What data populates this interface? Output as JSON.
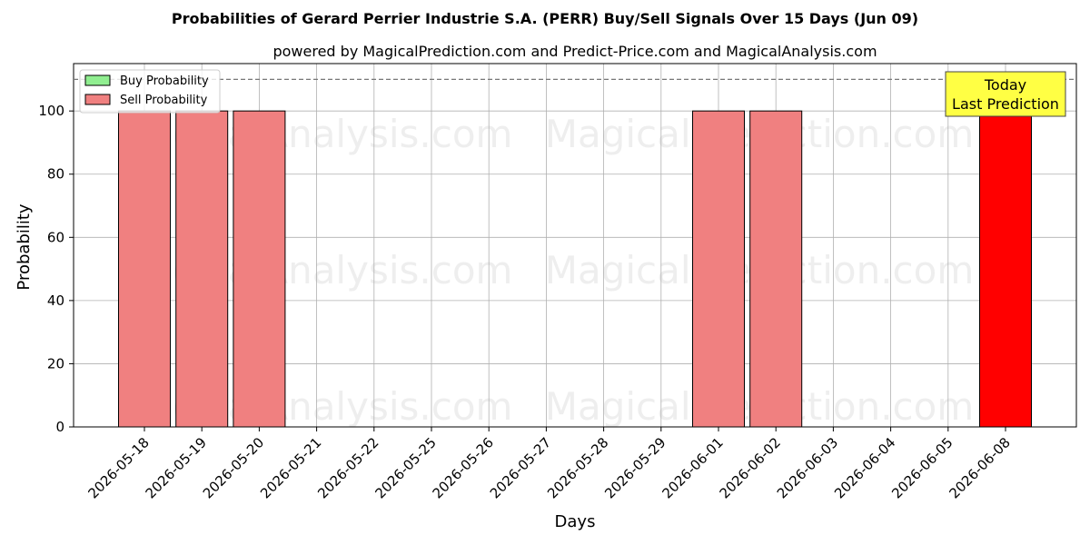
{
  "chart_data": {
    "type": "bar",
    "title": "Probabilities of Gerard Perrier Industrie S.A. (PERR) Buy/Sell Signals Over 15 Days (Jun 09)",
    "subtitle": "powered by MagicalPrediction.com and Predict-Price.com and MagicalAnalysis.com",
    "xlabel": "Days",
    "ylabel": "Probability",
    "ylim": [
      0,
      115
    ],
    "yticks": [
      0,
      20,
      40,
      60,
      80,
      100
    ],
    "grid": true,
    "legend_position": "top-left",
    "reference_line": 110,
    "categories": [
      "2026-05-18",
      "2026-05-19",
      "2026-05-20",
      "2026-05-21",
      "2026-05-22",
      "2026-05-25",
      "2026-05-26",
      "2026-05-27",
      "2026-05-28",
      "2026-05-29",
      "2026-06-01",
      "2026-06-02",
      "2026-06-03",
      "2026-06-04",
      "2026-06-05",
      "2026-06-08"
    ],
    "series": [
      {
        "name": "Buy Probability",
        "color": "#90ee90",
        "values": [
          0,
          0,
          0,
          0,
          0,
          0,
          0,
          0,
          0,
          0,
          0,
          0,
          0,
          0,
          0,
          0
        ]
      },
      {
        "name": "Sell Probability",
        "color": "#f08080",
        "values": [
          100,
          100,
          100,
          0,
          0,
          0,
          0,
          0,
          0,
          0,
          100,
          100,
          0,
          0,
          0,
          100
        ]
      }
    ],
    "highlight": {
      "category": "2026-06-08",
      "color": "#ff0000"
    },
    "annotation": {
      "lines": [
        "Today",
        "Last Prediction"
      ],
      "background": "#ffff44"
    },
    "watermarks": [
      "MagicalAnalysis.com",
      "MagicalPrediction.com"
    ]
  }
}
